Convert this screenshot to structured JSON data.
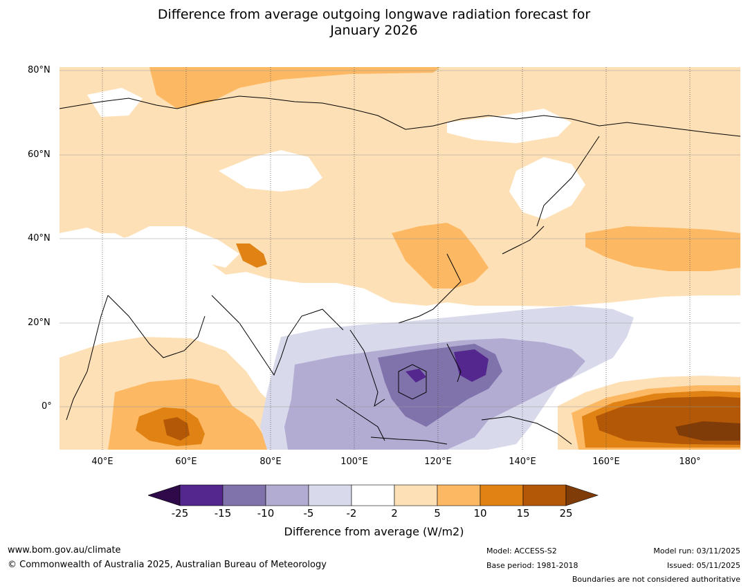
{
  "title": {
    "line1": "Difference from average outgoing longwave radiation forecast for",
    "line2": "January 2026"
  },
  "map": {
    "lat_labels": [
      "80°N",
      "60°N",
      "40°N",
      "20°N",
      "0°"
    ],
    "lon_labels": [
      "40°E",
      "60°E",
      "80°E",
      "100°E",
      "120°E",
      "140°E",
      "160°E",
      "180°"
    ],
    "region": "Asia (30°E–192°E, 10°S–80°N)"
  },
  "legend": {
    "ticks": [
      "-25",
      "-15",
      "-10",
      "-5",
      "-2",
      "2",
      "5",
      "10",
      "15",
      "25"
    ],
    "colors": [
      "#2e0a4a",
      "#54278f",
      "#8073ac",
      "#b2abd2",
      "#d8daeb",
      "#ffffff",
      "#fee0b6",
      "#fdb863",
      "#e08214",
      "#b35806",
      "#7f3b08"
    ],
    "label": "Difference from average (W/m2)"
  },
  "footer": {
    "website": "www.bom.gov.au/climate",
    "copyright": "© Commonwealth of Australia 2025, Australian Bureau of Meteorology",
    "model": "Model: ACCESS-S2",
    "base_period": "Base period: 1981-2018",
    "model_run": "Model run: 03/11/2025",
    "issued": "Issued: 05/11/2025",
    "disclaimer": "Boundaries are not considered authoritative"
  }
}
